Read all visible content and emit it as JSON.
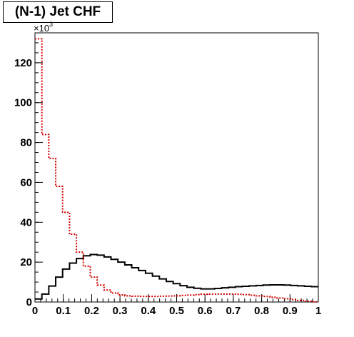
{
  "title": "(N-1) Jet CHF",
  "chart_data": {
    "type": "line",
    "title": "(N-1) Jet CHF",
    "xlabel": "",
    "ylabel": "",
    "y_multiplier_label": "×10",
    "y_multiplier_exponent": "3",
    "xlim": [
      0,
      1
    ],
    "ylim": [
      0,
      135
    ],
    "grid": false,
    "x_ticks": [
      "0",
      "0.1",
      "0.2",
      "0.3",
      "0.4",
      "0.5",
      "0.6",
      "0.7",
      "0.8",
      "0.9",
      "1"
    ],
    "y_ticks": [
      "0",
      "20",
      "40",
      "60",
      "80",
      "100",
      "120"
    ],
    "x": [
      0.0,
      0.025,
      0.05,
      0.075,
      0.1,
      0.125,
      0.15,
      0.175,
      0.2,
      0.225,
      0.25,
      0.275,
      0.3,
      0.325,
      0.35,
      0.375,
      0.4,
      0.425,
      0.45,
      0.475,
      0.5,
      0.525,
      0.55,
      0.575,
      0.6,
      0.625,
      0.65,
      0.675,
      0.7,
      0.725,
      0.75,
      0.775,
      0.8,
      0.825,
      0.85,
      0.875,
      0.9,
      0.925,
      0.95,
      0.975,
      1.0
    ],
    "series": [
      {
        "color": "#000000",
        "style": "solid-step",
        "values": [
          1.5,
          4,
          8,
          12.5,
          16.5,
          19.5,
          21.8,
          23.2,
          23.8,
          23.5,
          22.6,
          21.4,
          20,
          18.6,
          17.2,
          15.8,
          14.4,
          13,
          11.6,
          10.3,
          9.2,
          8.2,
          7.4,
          6.9,
          6.6,
          6.6,
          6.8,
          7.1,
          7.4,
          7.7,
          7.9,
          8.1,
          8.3,
          8.5,
          8.6,
          8.6,
          8.5,
          8.3,
          8.1,
          7.9,
          7.7
        ]
      },
      {
        "color": "#d40000",
        "style": "dotted-step",
        "values": [
          132,
          84,
          72,
          58,
          45,
          34,
          25,
          18,
          12.5,
          8.5,
          6,
          4.5,
          3.6,
          3.1,
          2.9,
          2.8,
          2.8,
          2.8,
          2.9,
          3.0,
          3.1,
          3.3,
          3.5,
          3.7,
          3.9,
          4.0,
          4.0,
          4.0,
          4.0,
          3.9,
          3.7,
          3.4,
          3.1,
          2.8,
          2.4,
          2.0,
          1.6,
          1.2,
          0.8,
          0.4,
          0.1
        ]
      }
    ]
  }
}
